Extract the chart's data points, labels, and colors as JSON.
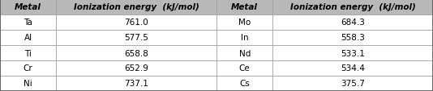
{
  "headers": [
    "Metal",
    "Ionization energy  (kJ/mol)",
    "Metal",
    "Ionization energy  (kJ/mol)"
  ],
  "rows": [
    [
      "Ta",
      "761.0",
      "Mo",
      "684.3"
    ],
    [
      "Al",
      "577.5",
      "In",
      "558.3"
    ],
    [
      "Ti",
      "658.8",
      "Nd",
      "533.1"
    ],
    [
      "Cr",
      "652.9",
      "Ce",
      "534.4"
    ],
    [
      "Ni",
      "737.1",
      "Cs",
      "375.7"
    ]
  ],
  "header_bg": "#b8b8b8",
  "row_bg": "#ffffff",
  "header_fontsize": 7.5,
  "cell_fontsize": 7.5,
  "figsize": [
    5.34,
    1.14
  ],
  "dpi": 100,
  "edge_color": "#999999",
  "outer_edge_color": "#555555"
}
